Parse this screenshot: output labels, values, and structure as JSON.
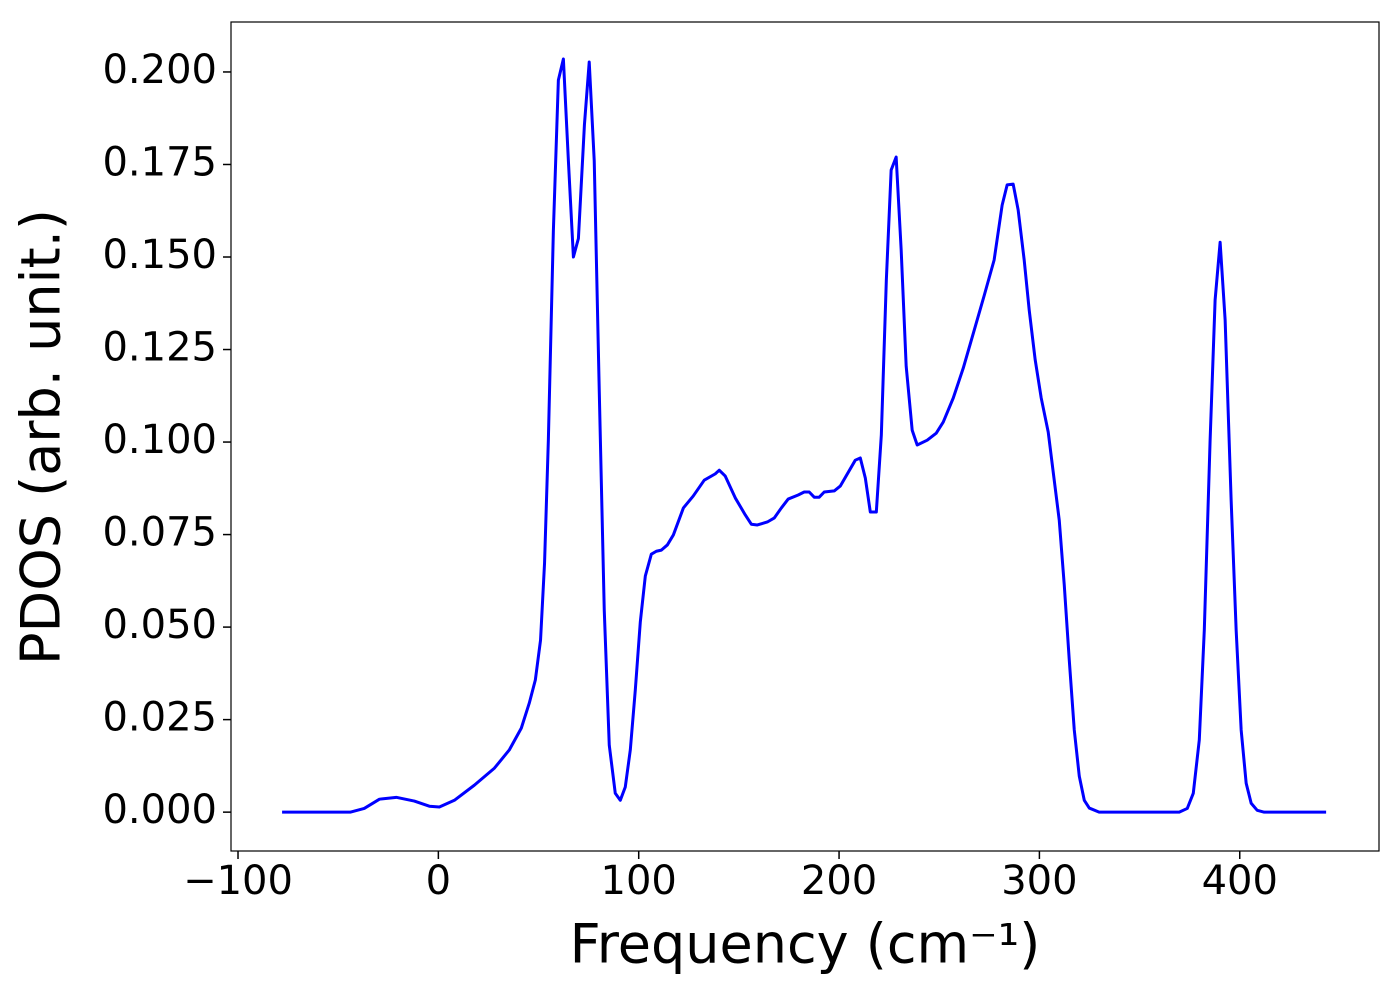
{
  "chart_data": {
    "type": "line",
    "xlabel": "Frequency (cm⁻¹)",
    "ylabel": "PDOS (arb. unit.)",
    "color": "#0000ff",
    "xlim": [
      -103.5,
      469.5
    ],
    "ylim": [
      -0.0105,
      0.2135
    ],
    "xticks": [
      {
        "value": -100,
        "label": "−100"
      },
      0,
      100,
      200,
      300,
      400
    ],
    "yticks": [
      {
        "value": 0,
        "label": "0.000"
      },
      {
        "value": 0.025,
        "label": "0.025"
      },
      {
        "value": 0.05,
        "label": "0.050"
      },
      {
        "value": 0.075,
        "label": "0.075"
      },
      {
        "value": 0.1,
        "label": "0.100"
      },
      {
        "value": 0.125,
        "label": "0.125"
      },
      {
        "value": 0.15,
        "label": "0.150"
      },
      {
        "value": 0.175,
        "label": "0.175"
      },
      {
        "value": 0.2,
        "label": "0.200"
      }
    ],
    "x": [
      -78,
      -44,
      -37,
      -29.4,
      -21,
      -12,
      -4.5,
      0.5,
      8,
      18,
      28,
      35.4,
      41.4,
      45.4,
      48.4,
      51,
      53,
      54.9,
      57.4,
      59.9,
      62.4,
      64.9,
      67.4,
      69.9,
      72.9,
      75.3,
      77.8,
      80.3,
      82.8,
      85.3,
      88.3,
      90.8,
      93.3,
      95.8,
      98.3,
      100.8,
      103.3,
      106.3,
      108.8,
      111.3,
      114.3,
      117.3,
      122.3,
      127.2,
      132.7,
      138.2,
      140.2,
      143.2,
      148.2,
      153.2,
      156.2,
      159.2,
      164.2,
      167.7,
      171.2,
      174.6,
      179.6,
      182.6,
      185.1,
      187.6,
      190.1,
      192.6,
      197.6,
      200.6,
      208.1,
      210.6,
      213.1,
      215.6,
      218.6,
      221.1,
      223.6,
      226,
      228.5,
      231,
      233.5,
      236.5,
      239,
      244,
      248.5,
      252,
      257,
      262,
      267.5,
      272.5,
      277.4,
      281.4,
      283.9,
      286.9,
      289.4,
      292.4,
      294.9,
      297.9,
      300.9,
      304.4,
      307.4,
      309.9,
      312.4,
      314.9,
      317.4,
      319.9,
      322.4,
      324.9,
      329.8,
      369.8,
      373.8,
      376.8,
      379.8,
      382.3,
      385.2,
      387.7,
      390.2,
      392.7,
      395.7,
      398.2,
      400.7,
      403.2,
      405.7,
      408.7,
      412.2,
      443.1
    ],
    "values": [
      0,
      0,
      0.001,
      0.0035,
      0.004,
      0.003,
      0.0016,
      0.0014,
      0.0032,
      0.0073,
      0.0119,
      0.0168,
      0.0227,
      0.0295,
      0.0357,
      0.0465,
      0.0673,
      0.1005,
      0.157,
      0.1978,
      0.2035,
      0.176,
      0.15,
      0.155,
      0.1857,
      0.2027,
      0.176,
      0.114,
      0.0546,
      0.0181,
      0.0051,
      0.0032,
      0.0068,
      0.0168,
      0.033,
      0.0514,
      0.0638,
      0.0697,
      0.0705,
      0.0708,
      0.0722,
      0.0749,
      0.0822,
      0.0854,
      0.0897,
      0.0914,
      0.0924,
      0.0908,
      0.0849,
      0.0803,
      0.0778,
      0.0776,
      0.0784,
      0.0795,
      0.0822,
      0.0846,
      0.0857,
      0.0865,
      0.0865,
      0.0851,
      0.0851,
      0.0865,
      0.0868,
      0.0881,
      0.0951,
      0.0957,
      0.0903,
      0.0811,
      0.0811,
      0.1019,
      0.1438,
      0.1735,
      0.177,
      0.1519,
      0.1205,
      0.1032,
      0.0992,
      0.1005,
      0.1024,
      0.1054,
      0.1119,
      0.12,
      0.1303,
      0.1397,
      0.1492,
      0.164,
      0.1695,
      0.1697,
      0.1627,
      0.1492,
      0.1357,
      0.1222,
      0.1119,
      0.1027,
      0.0897,
      0.0789,
      0.0614,
      0.0411,
      0.0222,
      0.0097,
      0.0032,
      0.0011,
      0,
      0,
      0.001,
      0.0051,
      0.0195,
      0.0492,
      0.1005,
      0.1384,
      0.154,
      0.133,
      0.0843,
      0.0492,
      0.0222,
      0.0078,
      0.0024,
      0.0005,
      0,
      0
    ]
  }
}
